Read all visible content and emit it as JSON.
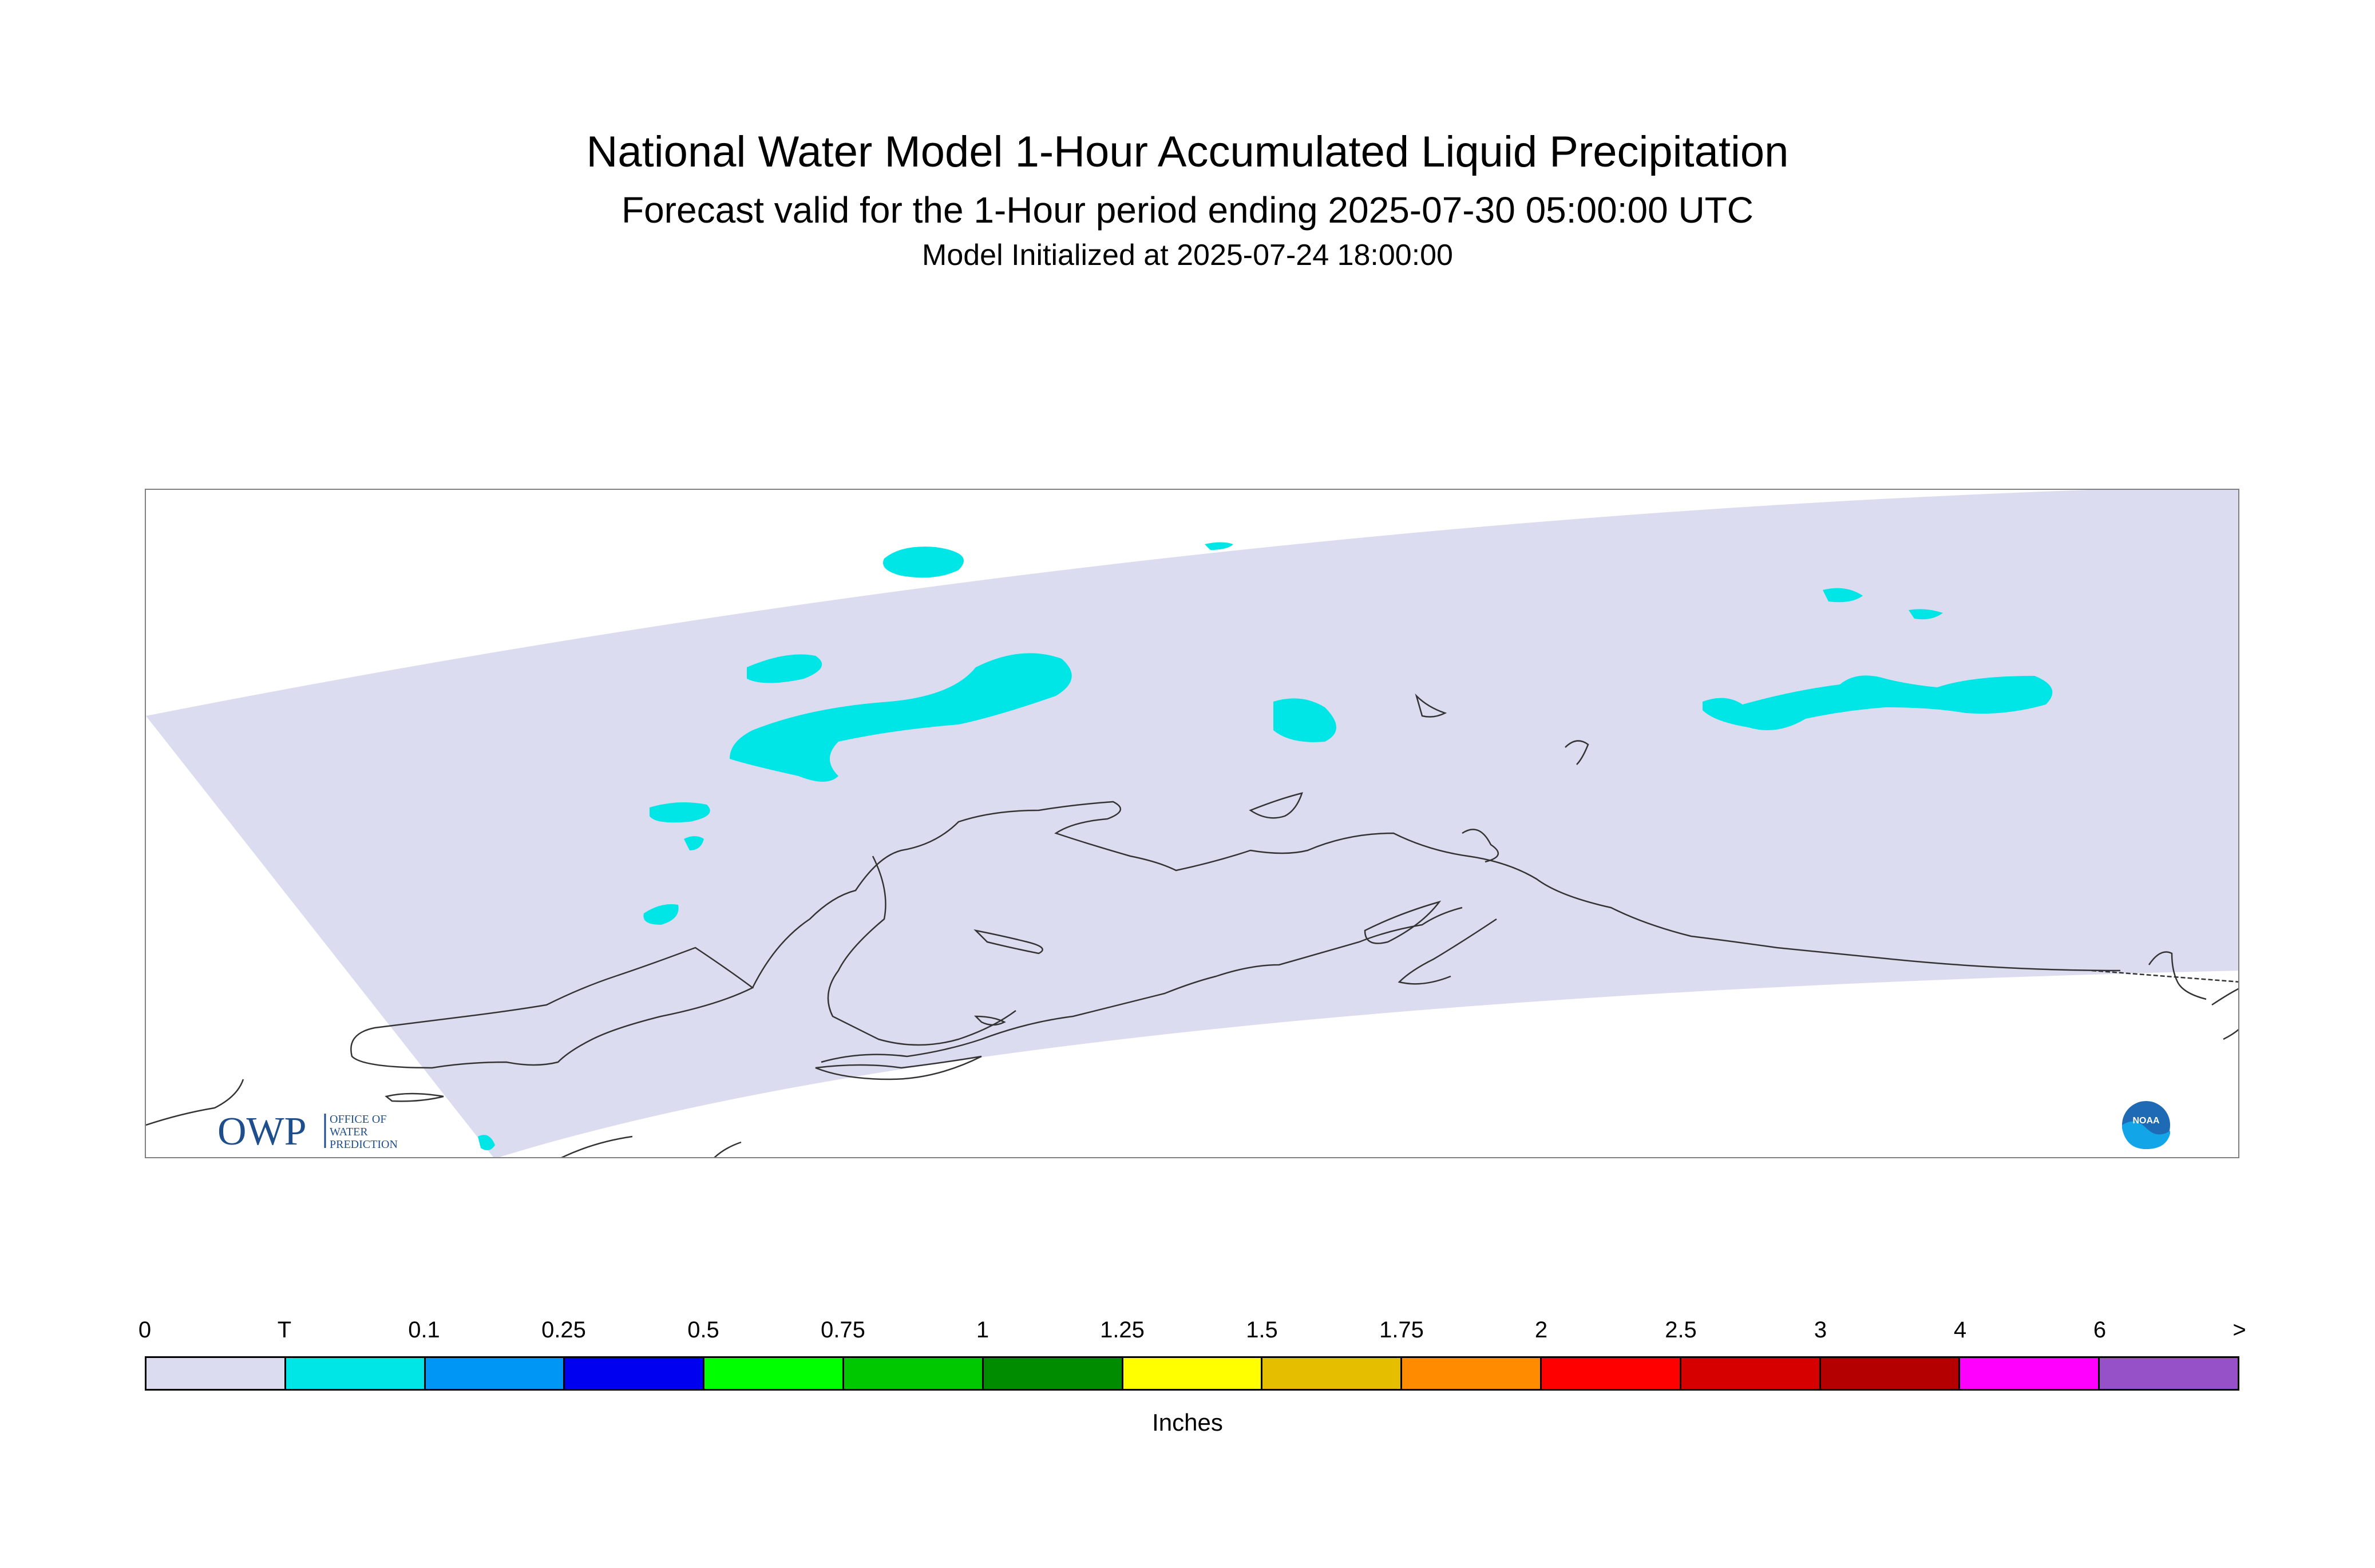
{
  "header": {
    "title": "National Water Model 1-Hour Accumulated Liquid Precipitation",
    "subtitle": "Forecast valid for the 1-Hour period ending 2025-07-30 05:00:00 UTC",
    "initialized": "Model Initialized at 2025-07-24 18:00:00"
  },
  "map": {
    "domain_fill_color": "#dcdcf0",
    "precip_color": "#00e5e5",
    "coastline_color": "#333333"
  },
  "logos": {
    "owp": {
      "text": "OWP",
      "line1": "OFFICE OF",
      "line2": "WATER",
      "line3": "PREDICTION"
    },
    "noaa": {
      "text": "NOAA"
    }
  },
  "legend": {
    "ticks": [
      "0",
      "T",
      "0.1",
      "0.25",
      "0.5",
      "0.75",
      "1",
      "1.25",
      "1.5",
      "1.75",
      "2",
      "2.5",
      "3",
      "4",
      "6",
      ">"
    ],
    "colors": [
      "#dcdcf0",
      "#00e5e5",
      "#0096f5",
      "#0000f0",
      "#00ff00",
      "#00c800",
      "#008c00",
      "#ffff00",
      "#e6be00",
      "#ff8c00",
      "#ff0000",
      "#d70000",
      "#b40000",
      "#ff00ff",
      "#9650c8"
    ],
    "units": "Inches"
  }
}
